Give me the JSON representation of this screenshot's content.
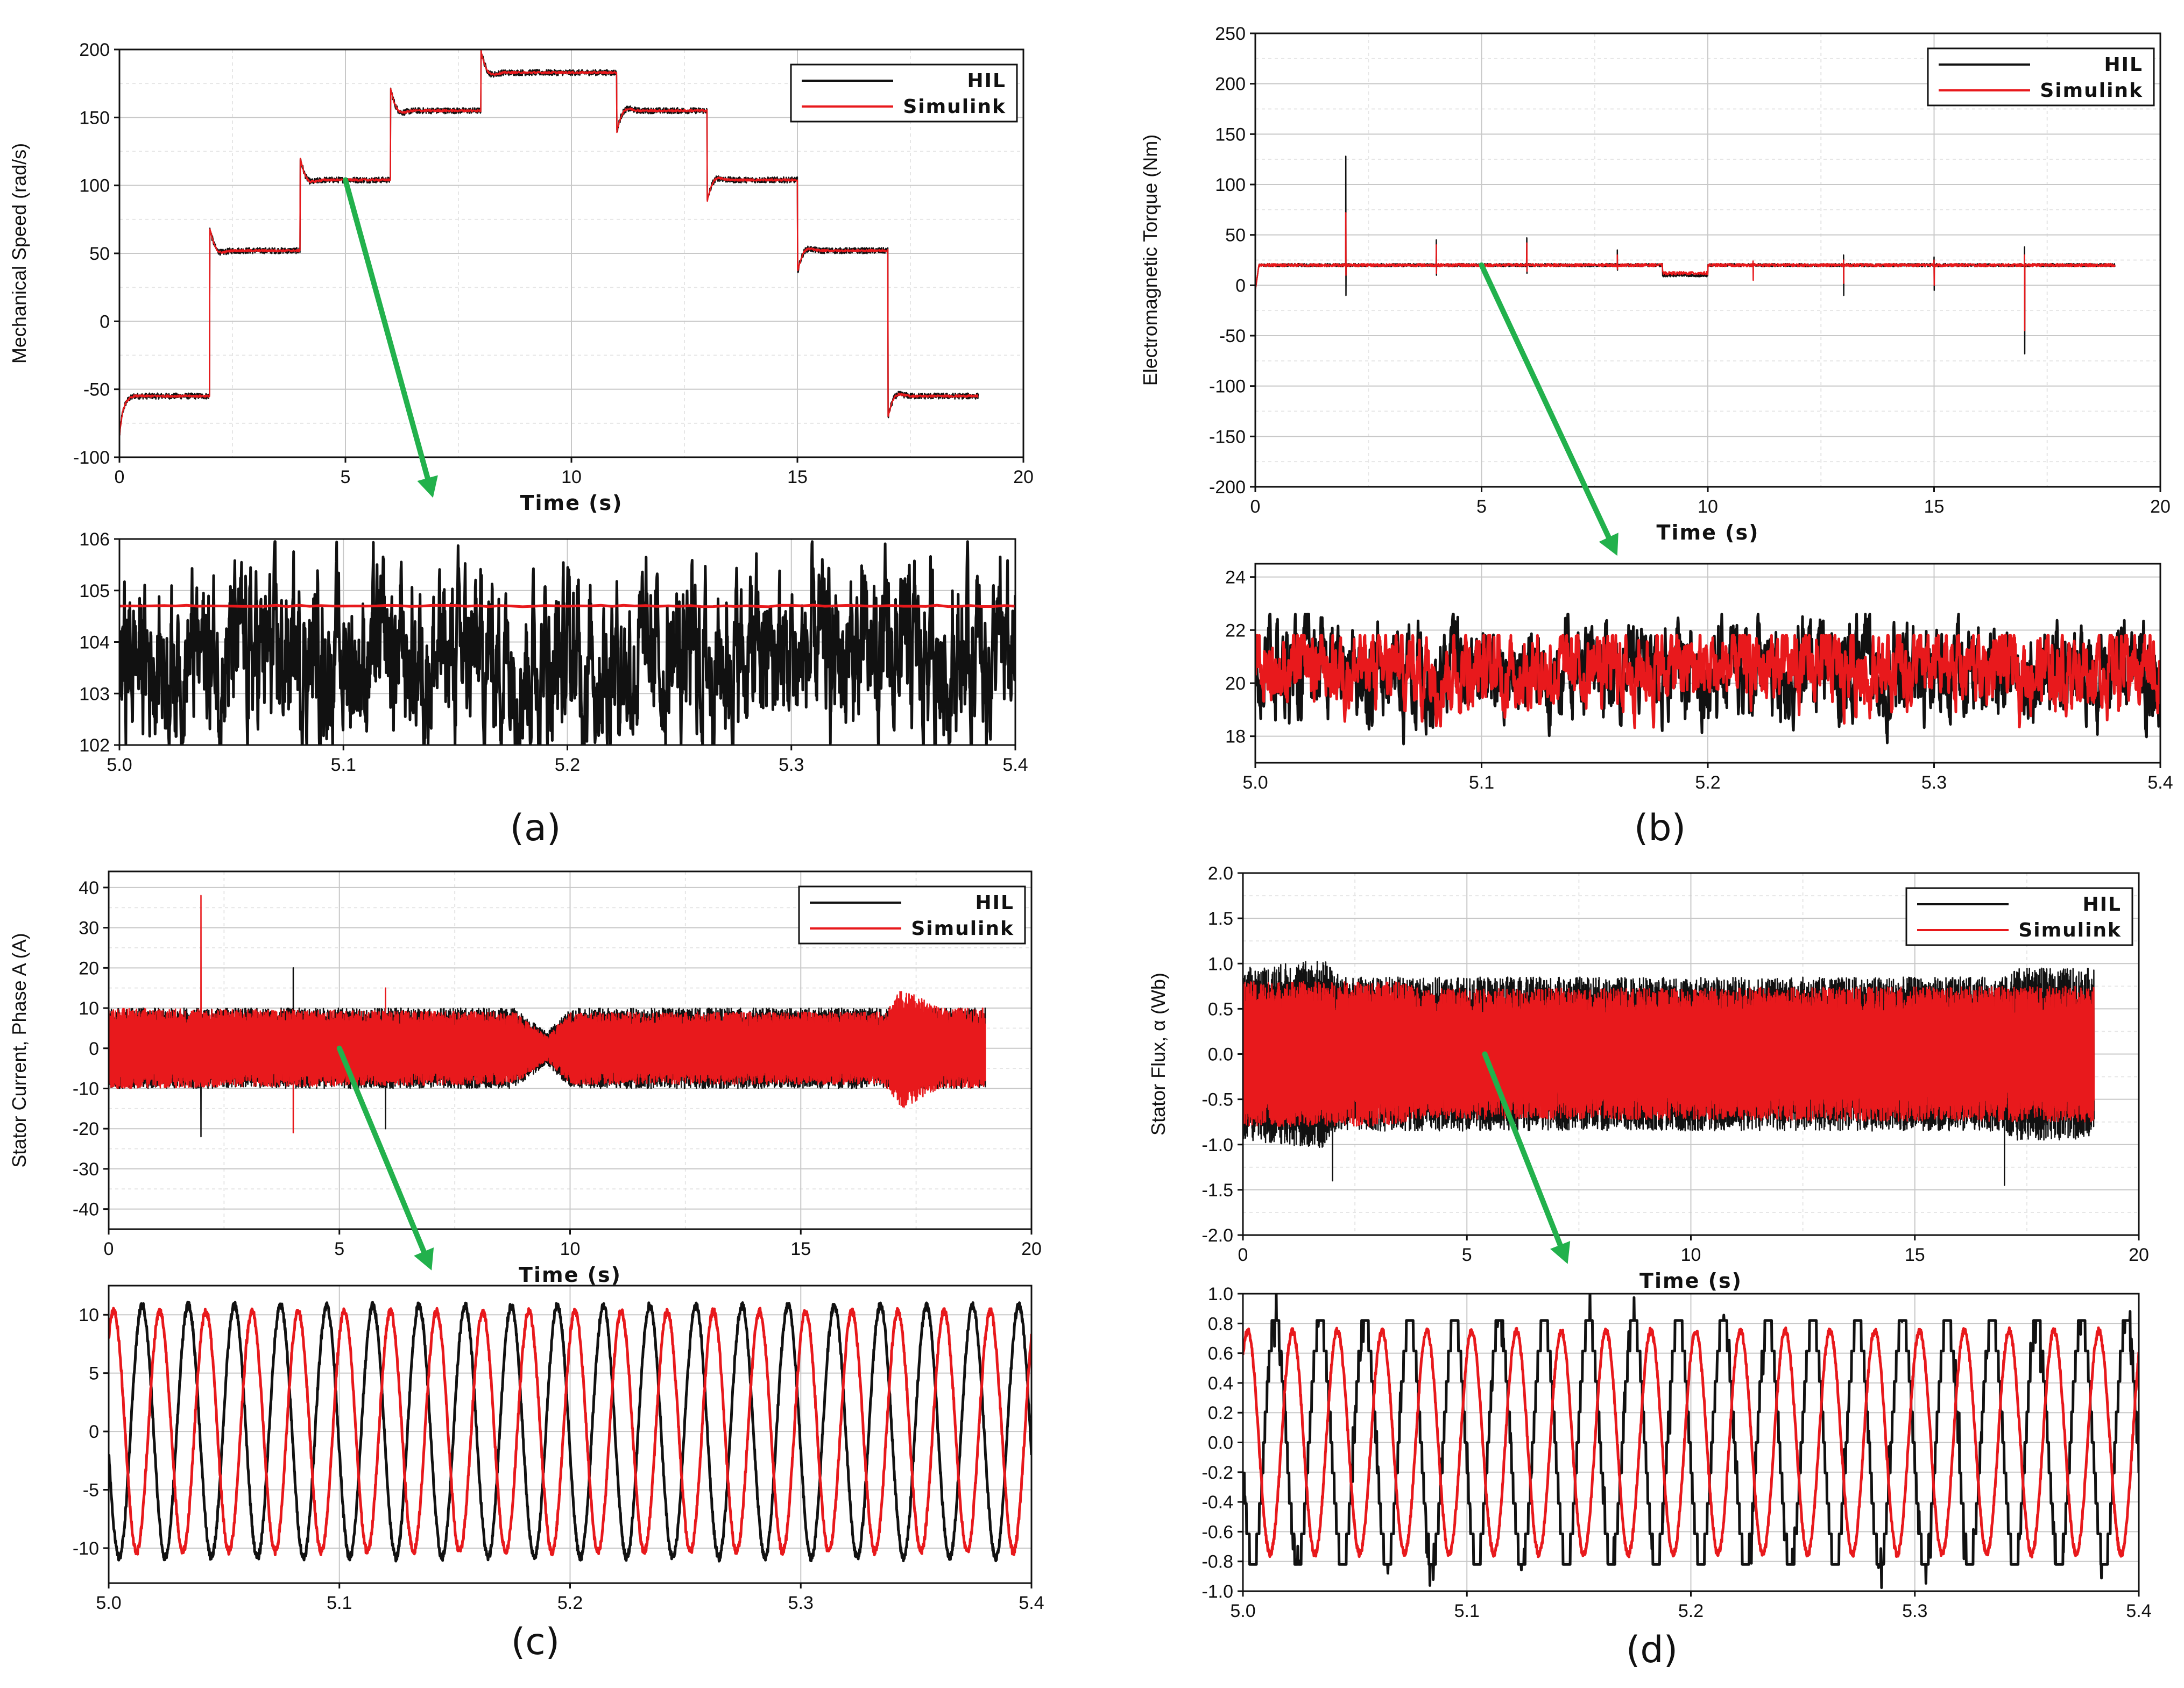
{
  "colors": {
    "hil": "#111111",
    "simulink": "#e8191c",
    "arrow": "#22b14c",
    "grid": "#c8c8c8",
    "minor_grid": "#e6e6e6"
  },
  "chart_data": [
    {
      "id": "a-main",
      "type": "line",
      "panel": "(a)",
      "ylabel": "Mechanical Speed (rad/s)",
      "xlabel": "Time (s)",
      "xlim": [
        0,
        20
      ],
      "ylim": [
        -100,
        200
      ],
      "xticks": [
        "0",
        "5",
        "10",
        "15",
        "20"
      ],
      "yticks": [
        "-100",
        "-50",
        "0",
        "50",
        "100",
        "150",
        "200"
      ],
      "legend": {
        "position": "top-right",
        "entries": [
          "HIL",
          "Simulink"
        ]
      },
      "series": [
        {
          "name": "HIL",
          "kind": "steps",
          "end": 19,
          "steps": [
            [
              0,
              -55
            ],
            [
              2,
              52
            ],
            [
              4,
              104
            ],
            [
              6,
              155
            ],
            [
              8,
              183
            ],
            [
              11,
              155
            ],
            [
              13,
              104
            ],
            [
              15,
              52
            ],
            [
              17,
              -55
            ]
          ],
          "ripple": 2.2,
          "overshoot": 16
        },
        {
          "name": "Simulink",
          "kind": "steps",
          "end": 19,
          "steps": [
            [
              0,
              -55
            ],
            [
              2,
              52
            ],
            [
              4,
              104
            ],
            [
              6,
              155
            ],
            [
              8,
              183
            ],
            [
              11,
              155
            ],
            [
              13,
              104
            ],
            [
              15,
              52
            ],
            [
              17,
              -55
            ]
          ],
          "ripple": 0.8,
          "overshoot": 16
        }
      ]
    },
    {
      "id": "a-zoom",
      "type": "line",
      "panel": "(a)",
      "xlim": [
        5.0,
        5.4
      ],
      "ylim": [
        102,
        106
      ],
      "xticks": [
        "5.0",
        "5.1",
        "5.2",
        "5.3",
        "5.4"
      ],
      "yticks": [
        "102",
        "103",
        "104",
        "105",
        "106"
      ],
      "series": [
        {
          "name": "HIL",
          "kind": "noise",
          "mean": 103.7,
          "amplitude": 1.1,
          "min": 101.9,
          "max": 105.95
        },
        {
          "name": "Simulink",
          "kind": "constant",
          "value": 104.7
        }
      ]
    },
    {
      "id": "b-main",
      "type": "line",
      "panel": "(b)",
      "ylabel": "Electromagnetic Torque (Nm)",
      "xlabel": "Time (s)",
      "xlim": [
        0,
        20
      ],
      "ylim": [
        -200,
        250
      ],
      "xticks": [
        "0",
        "5",
        "10",
        "15",
        "20"
      ],
      "yticks": [
        "-200",
        "-150",
        "-100",
        "-50",
        "0",
        "50",
        "100",
        "150",
        "200",
        "250"
      ],
      "legend": {
        "position": "top-right",
        "entries": [
          "HIL",
          "Simulink"
        ]
      },
      "series": [
        {
          "name": "HIL",
          "kind": "spikes",
          "base": 20,
          "end": 19,
          "dip": [
            9,
            10,
            10
          ],
          "spikes": [
            [
              2,
              128,
              -10
            ],
            [
              4,
              45,
              10
            ],
            [
              6,
              47,
              12
            ],
            [
              8,
              35,
              15
            ],
            [
              13,
              30,
              -10
            ],
            [
              15,
              28,
              -5
            ],
            [
              17,
              38,
              -68
            ]
          ]
        },
        {
          "name": "Simulink",
          "kind": "spikes",
          "base": 20,
          "end": 19,
          "dip": [
            9,
            10,
            12
          ],
          "spikes": [
            [
              2,
              72,
              10
            ],
            [
              4,
              40,
              12
            ],
            [
              6,
              42,
              14
            ],
            [
              8,
              30,
              16
            ],
            [
              11,
              24,
              5
            ],
            [
              13,
              25,
              2
            ],
            [
              15,
              25,
              0
            ],
            [
              17,
              30,
              -45
            ]
          ]
        }
      ]
    },
    {
      "id": "b-zoom",
      "type": "line",
      "panel": "(b)",
      "xlim": [
        5.0,
        5.4
      ],
      "ylim": [
        17,
        24.5
      ],
      "xticks": [
        "5.0",
        "5.1",
        "5.2",
        "5.3",
        "5.4"
      ],
      "yticks": [
        "18",
        "20",
        "22",
        "24"
      ],
      "series": [
        {
          "name": "HIL",
          "kind": "noise",
          "mean": 20.5,
          "amplitude": 1.2,
          "min": 17.5,
          "max": 22.6
        },
        {
          "name": "Simulink",
          "kind": "noise",
          "mean": 20.6,
          "amplitude": 1.0,
          "min": 18.1,
          "max": 21.8
        }
      ]
    },
    {
      "id": "c-main",
      "type": "line",
      "panel": "(c)",
      "ylabel": "Stator Current, Phase A (A)",
      "xlabel": "Time (s)",
      "xlim": [
        0,
        20
      ],
      "ylim": [
        -45,
        44
      ],
      "xticks": [
        "0",
        "5",
        "10",
        "15",
        "20"
      ],
      "yticks": [
        "-40",
        "-30",
        "-20",
        "-10",
        "0",
        "10",
        "20",
        "30",
        "40"
      ],
      "legend": {
        "position": "top-right",
        "entries": [
          "HIL",
          "Simulink"
        ]
      },
      "series": [
        {
          "name": "HIL",
          "kind": "osc",
          "end": 19,
          "env": [
            [
              0,
              10
            ],
            [
              8.8,
              10
            ],
            [
              9.5,
              4
            ],
            [
              10.0,
              10
            ],
            [
              19,
              10
            ]
          ],
          "spikes": [
            [
              2,
              -22
            ],
            [
              4,
              20
            ],
            [
              6,
              -20
            ]
          ]
        },
        {
          "name": "Simulink",
          "kind": "osc",
          "end": 19,
          "env": [
            [
              0,
              10
            ],
            [
              8.8,
              9
            ],
            [
              9.5,
              3
            ],
            [
              10.0,
              9
            ],
            [
              16.8,
              9
            ],
            [
              17.2,
              15
            ],
            [
              18,
              10
            ],
            [
              19,
              10
            ]
          ],
          "spikes": [
            [
              2,
              38
            ],
            [
              4,
              -21
            ],
            [
              6,
              15
            ]
          ]
        }
      ]
    },
    {
      "id": "c-zoom",
      "type": "line",
      "panel": "(c)",
      "xlim": [
        5.0,
        5.4
      ],
      "ylim": [
        -13,
        12.5
      ],
      "xticks": [
        "5.0",
        "5.1",
        "5.2",
        "5.3",
        "5.4"
      ],
      "yticks": [
        "-10",
        "-5",
        "0",
        "5",
        "10"
      ],
      "series": [
        {
          "name": "HIL",
          "kind": "sine",
          "amplitude": 10.8,
          "cycles": 20,
          "phase": 3.3
        },
        {
          "name": "Simulink",
          "kind": "sine",
          "amplitude": 10.3,
          "cycles": 20,
          "phase": 0.9
        }
      ]
    },
    {
      "id": "d-main",
      "type": "line",
      "panel": "(d)",
      "ylabel": "Stator Flux, α (Wb)",
      "xlabel": "Time (s)",
      "xlim": [
        0,
        20
      ],
      "ylim": [
        -2.0,
        2.0
      ],
      "xticks": [
        "0",
        "5",
        "10",
        "15",
        "20"
      ],
      "yticks": [
        "-2.0",
        "-1.5",
        "-1.0",
        "-0.5",
        "0.0",
        "0.5",
        "1.0",
        "1.5",
        "2.0"
      ],
      "legend": {
        "position": "top-right",
        "entries": [
          "HIL",
          "Simulink"
        ]
      },
      "series": [
        {
          "name": "HIL",
          "kind": "osc",
          "end": 19,
          "env": [
            [
              0,
              0.95
            ],
            [
              1.8,
              1.05
            ],
            [
              2.2,
              0.85
            ],
            [
              17,
              0.85
            ],
            [
              17.2,
              0.95
            ],
            [
              19,
              0.95
            ]
          ],
          "spikes": [
            [
              2,
              -1.4
            ],
            [
              17,
              -1.45
            ]
          ]
        },
        {
          "name": "Simulink",
          "kind": "osc",
          "end": 19,
          "env": [
            [
              0,
              0.8
            ],
            [
              3.5,
              0.8
            ],
            [
              4.0,
              0.72
            ],
            [
              19,
              0.75
            ]
          ],
          "spikes": []
        }
      ]
    },
    {
      "id": "d-zoom",
      "type": "line",
      "panel": "(d)",
      "xlim": [
        5.0,
        5.4
      ],
      "ylim": [
        -1.0,
        1.0
      ],
      "xticks": [
        "5.0",
        "5.1",
        "5.2",
        "5.3",
        "5.4"
      ],
      "yticks": [
        "-1.0",
        "-0.8",
        "-0.6",
        "-0.4",
        "-0.2",
        "0.0",
        "0.2",
        "0.4",
        "0.6",
        "0.8",
        "1.0"
      ],
      "series": [
        {
          "name": "HIL",
          "kind": "sine",
          "amplitude": 0.82,
          "cycles": 20,
          "phase": 3.3,
          "stepped": true
        },
        {
          "name": "Simulink",
          "kind": "sine",
          "amplitude": 0.75,
          "cycles": 20,
          "phase": 0.9
        }
      ]
    }
  ],
  "arrows": [
    {
      "from_chart": "a-main",
      "from_xy": [
        5,
        104
      ],
      "to_chart": "a-zoom",
      "to_xy": [
        5.14,
        106.8
      ]
    },
    {
      "from_chart": "b-main",
      "from_xy": [
        5,
        20
      ],
      "to_chart": "b-zoom",
      "to_xy": [
        5.16,
        24.8
      ]
    },
    {
      "from_chart": "c-main",
      "from_xy": [
        5,
        0
      ],
      "to_chart": "c-zoom",
      "to_xy": [
        5.14,
        13.8
      ]
    },
    {
      "from_chart": "d-main",
      "from_xy": [
        5.4,
        0
      ],
      "to_chart": "d-zoom",
      "to_xy": [
        5.145,
        1.2
      ]
    }
  ],
  "panel_labels": [
    "(a)",
    "(b)",
    "(c)",
    "(d)"
  ]
}
